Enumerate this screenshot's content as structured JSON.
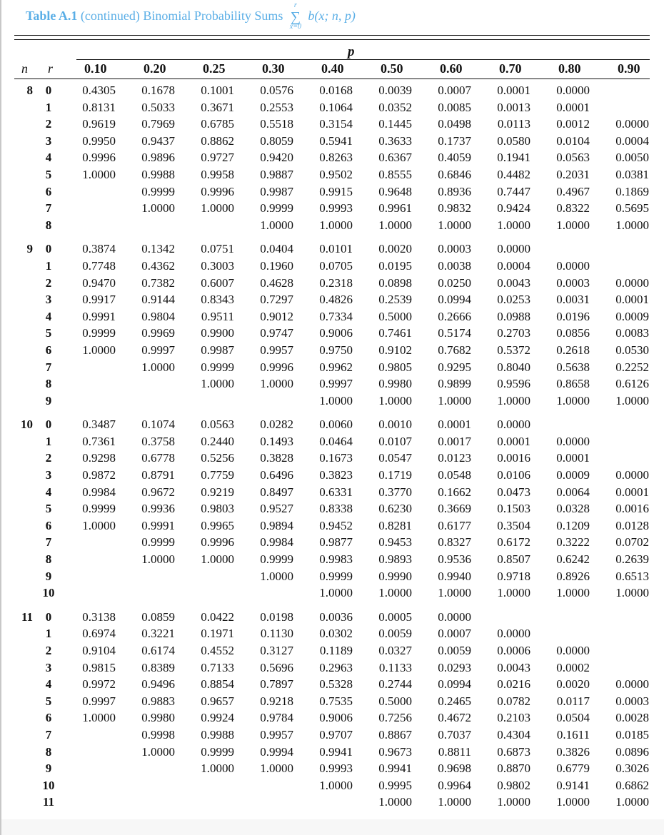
{
  "title": {
    "label": "Table A.1",
    "text": "(continued) Binomial Probability Sums",
    "sum_upper": "r",
    "sum_symbol": "∑",
    "sum_lower": "x=0",
    "function": "b(x; n, p)"
  },
  "header": {
    "p_label": "p",
    "n_label": "n",
    "r_label": "r",
    "p_values": [
      "0.10",
      "0.20",
      "0.25",
      "0.30",
      "0.40",
      "0.50",
      "0.60",
      "0.70",
      "0.80",
      "0.90"
    ]
  },
  "groups": [
    {
      "n": "8",
      "rows": [
        {
          "r": "0",
          "v": [
            "0.4305",
            "0.1678",
            "0.1001",
            "0.0576",
            "0.0168",
            "0.0039",
            "0.0007",
            "0.0001",
            "0.0000",
            ""
          ]
        },
        {
          "r": "1",
          "v": [
            "0.8131",
            "0.5033",
            "0.3671",
            "0.2553",
            "0.1064",
            "0.0352",
            "0.0085",
            "0.0013",
            "0.0001",
            ""
          ]
        },
        {
          "r": "2",
          "v": [
            "0.9619",
            "0.7969",
            "0.6785",
            "0.5518",
            "0.3154",
            "0.1445",
            "0.0498",
            "0.0113",
            "0.0012",
            "0.0000"
          ]
        },
        {
          "r": "3",
          "v": [
            "0.9950",
            "0.9437",
            "0.8862",
            "0.8059",
            "0.5941",
            "0.3633",
            "0.1737",
            "0.0580",
            "0.0104",
            "0.0004"
          ]
        },
        {
          "r": "4",
          "v": [
            "0.9996",
            "0.9896",
            "0.9727",
            "0.9420",
            "0.8263",
            "0.6367",
            "0.4059",
            "0.1941",
            "0.0563",
            "0.0050"
          ]
        },
        {
          "r": "5",
          "v": [
            "1.0000",
            "0.9988",
            "0.9958",
            "0.9887",
            "0.9502",
            "0.8555",
            "0.6846",
            "0.4482",
            "0.2031",
            "0.0381"
          ]
        },
        {
          "r": "6",
          "v": [
            "",
            "0.9999",
            "0.9996",
            "0.9987",
            "0.9915",
            "0.9648",
            "0.8936",
            "0.7447",
            "0.4967",
            "0.1869"
          ]
        },
        {
          "r": "7",
          "v": [
            "",
            "1.0000",
            "1.0000",
            "0.9999",
            "0.9993",
            "0.9961",
            "0.9832",
            "0.9424",
            "0.8322",
            "0.5695"
          ]
        },
        {
          "r": "8",
          "v": [
            "",
            "",
            "",
            "1.0000",
            "1.0000",
            "1.0000",
            "1.0000",
            "1.0000",
            "1.0000",
            "1.0000"
          ]
        }
      ]
    },
    {
      "n": "9",
      "rows": [
        {
          "r": "0",
          "v": [
            "0.3874",
            "0.1342",
            "0.0751",
            "0.0404",
            "0.0101",
            "0.0020",
            "0.0003",
            "0.0000",
            "",
            ""
          ]
        },
        {
          "r": "1",
          "v": [
            "0.7748",
            "0.4362",
            "0.3003",
            "0.1960",
            "0.0705",
            "0.0195",
            "0.0038",
            "0.0004",
            "0.0000",
            ""
          ]
        },
        {
          "r": "2",
          "v": [
            "0.9470",
            "0.7382",
            "0.6007",
            "0.4628",
            "0.2318",
            "0.0898",
            "0.0250",
            "0.0043",
            "0.0003",
            "0.0000"
          ]
        },
        {
          "r": "3",
          "v": [
            "0.9917",
            "0.9144",
            "0.8343",
            "0.7297",
            "0.4826",
            "0.2539",
            "0.0994",
            "0.0253",
            "0.0031",
            "0.0001"
          ]
        },
        {
          "r": "4",
          "v": [
            "0.9991",
            "0.9804",
            "0.9511",
            "0.9012",
            "0.7334",
            "0.5000",
            "0.2666",
            "0.0988",
            "0.0196",
            "0.0009"
          ]
        },
        {
          "r": "5",
          "v": [
            "0.9999",
            "0.9969",
            "0.9900",
            "0.9747",
            "0.9006",
            "0.7461",
            "0.5174",
            "0.2703",
            "0.0856",
            "0.0083"
          ]
        },
        {
          "r": "6",
          "v": [
            "1.0000",
            "0.9997",
            "0.9987",
            "0.9957",
            "0.9750",
            "0.9102",
            "0.7682",
            "0.5372",
            "0.2618",
            "0.0530"
          ]
        },
        {
          "r": "7",
          "v": [
            "",
            "1.0000",
            "0.9999",
            "0.9996",
            "0.9962",
            "0.9805",
            "0.9295",
            "0.8040",
            "0.5638",
            "0.2252"
          ]
        },
        {
          "r": "8",
          "v": [
            "",
            "",
            "1.0000",
            "1.0000",
            "0.9997",
            "0.9980",
            "0.9899",
            "0.9596",
            "0.8658",
            "0.6126"
          ]
        },
        {
          "r": "9",
          "v": [
            "",
            "",
            "",
            "",
            "1.0000",
            "1.0000",
            "1.0000",
            "1.0000",
            "1.0000",
            "1.0000"
          ]
        }
      ]
    },
    {
      "n": "10",
      "rows": [
        {
          "r": "0",
          "v": [
            "0.3487",
            "0.1074",
            "0.0563",
            "0.0282",
            "0.0060",
            "0.0010",
            "0.0001",
            "0.0000",
            "",
            ""
          ]
        },
        {
          "r": "1",
          "v": [
            "0.7361",
            "0.3758",
            "0.2440",
            "0.1493",
            "0.0464",
            "0.0107",
            "0.0017",
            "0.0001",
            "0.0000",
            ""
          ]
        },
        {
          "r": "2",
          "v": [
            "0.9298",
            "0.6778",
            "0.5256",
            "0.3828",
            "0.1673",
            "0.0547",
            "0.0123",
            "0.0016",
            "0.0001",
            ""
          ]
        },
        {
          "r": "3",
          "v": [
            "0.9872",
            "0.8791",
            "0.7759",
            "0.6496",
            "0.3823",
            "0.1719",
            "0.0548",
            "0.0106",
            "0.0009",
            "0.0000"
          ]
        },
        {
          "r": "4",
          "v": [
            "0.9984",
            "0.9672",
            "0.9219",
            "0.8497",
            "0.6331",
            "0.3770",
            "0.1662",
            "0.0473",
            "0.0064",
            "0.0001"
          ]
        },
        {
          "r": "5",
          "v": [
            "0.9999",
            "0.9936",
            "0.9803",
            "0.9527",
            "0.8338",
            "0.6230",
            "0.3669",
            "0.1503",
            "0.0328",
            "0.0016"
          ]
        },
        {
          "r": "6",
          "v": [
            "1.0000",
            "0.9991",
            "0.9965",
            "0.9894",
            "0.9452",
            "0.8281",
            "0.6177",
            "0.3504",
            "0.1209",
            "0.0128"
          ]
        },
        {
          "r": "7",
          "v": [
            "",
            "0.9999",
            "0.9996",
            "0.9984",
            "0.9877",
            "0.9453",
            "0.8327",
            "0.6172",
            "0.3222",
            "0.0702"
          ]
        },
        {
          "r": "8",
          "v": [
            "",
            "1.0000",
            "1.0000",
            "0.9999",
            "0.9983",
            "0.9893",
            "0.9536",
            "0.8507",
            "0.6242",
            "0.2639"
          ]
        },
        {
          "r": "9",
          "v": [
            "",
            "",
            "",
            "1.0000",
            "0.9999",
            "0.9990",
            "0.9940",
            "0.9718",
            "0.8926",
            "0.6513"
          ]
        },
        {
          "r": "10",
          "v": [
            "",
            "",
            "",
            "",
            "1.0000",
            "1.0000",
            "1.0000",
            "1.0000",
            "1.0000",
            "1.0000"
          ]
        }
      ]
    },
    {
      "n": "11",
      "rows": [
        {
          "r": "0",
          "v": [
            "0.3138",
            "0.0859",
            "0.0422",
            "0.0198",
            "0.0036",
            "0.0005",
            "0.0000",
            "",
            "",
            ""
          ]
        },
        {
          "r": "1",
          "v": [
            "0.6974",
            "0.3221",
            "0.1971",
            "0.1130",
            "0.0302",
            "0.0059",
            "0.0007",
            "0.0000",
            "",
            ""
          ]
        },
        {
          "r": "2",
          "v": [
            "0.9104",
            "0.6174",
            "0.4552",
            "0.3127",
            "0.1189",
            "0.0327",
            "0.0059",
            "0.0006",
            "0.0000",
            ""
          ]
        },
        {
          "r": "3",
          "v": [
            "0.9815",
            "0.8389",
            "0.7133",
            "0.5696",
            "0.2963",
            "0.1133",
            "0.0293",
            "0.0043",
            "0.0002",
            ""
          ]
        },
        {
          "r": "4",
          "v": [
            "0.9972",
            "0.9496",
            "0.8854",
            "0.7897",
            "0.5328",
            "0.2744",
            "0.0994",
            "0.0216",
            "0.0020",
            "0.0000"
          ]
        },
        {
          "r": "5",
          "v": [
            "0.9997",
            "0.9883",
            "0.9657",
            "0.9218",
            "0.7535",
            "0.5000",
            "0.2465",
            "0.0782",
            "0.0117",
            "0.0003"
          ]
        },
        {
          "r": "6",
          "v": [
            "1.0000",
            "0.9980",
            "0.9924",
            "0.9784",
            "0.9006",
            "0.7256",
            "0.4672",
            "0.2103",
            "0.0504",
            "0.0028"
          ]
        },
        {
          "r": "7",
          "v": [
            "",
            "0.9998",
            "0.9988",
            "0.9957",
            "0.9707",
            "0.8867",
            "0.7037",
            "0.4304",
            "0.1611",
            "0.0185"
          ]
        },
        {
          "r": "8",
          "v": [
            "",
            "1.0000",
            "0.9999",
            "0.9994",
            "0.9941",
            "0.9673",
            "0.8811",
            "0.6873",
            "0.3826",
            "0.0896"
          ]
        },
        {
          "r": "9",
          "v": [
            "",
            "",
            "1.0000",
            "1.0000",
            "0.9993",
            "0.9941",
            "0.9698",
            "0.8870",
            "0.6779",
            "0.3026"
          ]
        },
        {
          "r": "10",
          "v": [
            "",
            "",
            "",
            "",
            "1.0000",
            "0.9995",
            "0.9964",
            "0.9802",
            "0.9141",
            "0.6862"
          ]
        },
        {
          "r": "11",
          "v": [
            "",
            "",
            "",
            "",
            "",
            "1.0000",
            "1.0000",
            "1.0000",
            "1.0000",
            "1.0000"
          ]
        }
      ]
    }
  ]
}
